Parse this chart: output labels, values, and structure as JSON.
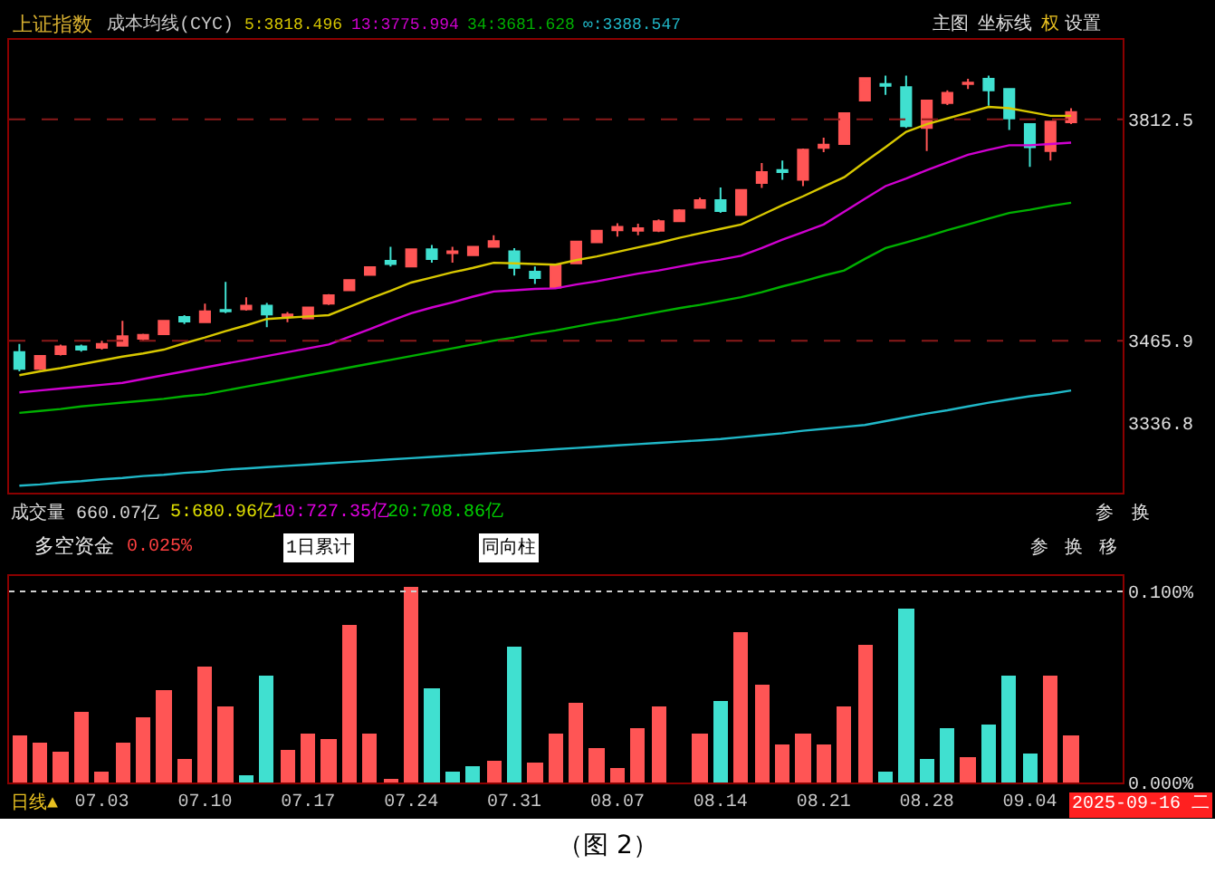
{
  "chart_data": [
    {
      "type": "candlestick",
      "title": "上证指数",
      "subtitle": "成本均线(CYC)",
      "categories": [
        null,
        null,
        null,
        null,
        "07.03",
        null,
        null,
        null,
        null,
        "07.10",
        null,
        null,
        null,
        null,
        "07.17",
        null,
        null,
        null,
        null,
        "07.24",
        null,
        null,
        null,
        null,
        "07.31",
        null,
        null,
        null,
        null,
        "08.07",
        null,
        null,
        null,
        null,
        "08.14",
        null,
        null,
        null,
        null,
        "08.21",
        null,
        null,
        null,
        null,
        "08.28",
        null,
        null,
        null,
        null,
        "09.04",
        null,
        null
      ],
      "ohlc": [
        [
          3448,
          3461,
          3418,
          3422
        ],
        [
          3422,
          3442,
          3420,
          3442
        ],
        [
          3445,
          3460,
          3443,
          3457
        ],
        [
          3457,
          3460,
          3449,
          3452
        ],
        [
          3455,
          3466,
          3452,
          3461
        ],
        [
          3458,
          3497,
          3457,
          3473
        ],
        [
          3469,
          3477,
          3466,
          3475
        ],
        [
          3476,
          3497,
          3475,
          3497
        ],
        [
          3503,
          3506,
          3492,
          3496
        ],
        [
          3495,
          3524,
          3494,
          3512
        ],
        [
          3514,
          3558,
          3509,
          3512
        ],
        [
          3515,
          3534,
          3513,
          3521
        ],
        [
          3521,
          3525,
          3487,
          3507
        ],
        [
          3503,
          3511,
          3495,
          3507
        ],
        [
          3501,
          3519,
          3500,
          3518
        ],
        [
          3524,
          3539,
          3522,
          3537
        ],
        [
          3545,
          3561,
          3545,
          3561
        ],
        [
          3569,
          3582,
          3568,
          3581
        ],
        [
          3591,
          3613,
          3582,
          3586
        ],
        [
          3582,
          3609,
          3582,
          3609
        ],
        [
          3609,
          3616,
          3588,
          3594
        ],
        [
          3603,
          3613,
          3588,
          3606
        ],
        [
          3600,
          3614,
          3600,
          3613
        ],
        [
          3613,
          3631,
          3612,
          3622
        ],
        [
          3606,
          3611,
          3568,
          3580
        ],
        [
          3574,
          3582,
          3555,
          3564
        ],
        [
          3549,
          3585,
          3548,
          3584
        ],
        [
          3587,
          3622,
          3586,
          3621
        ],
        [
          3620,
          3639,
          3619,
          3638
        ],
        [
          3639,
          3650,
          3629,
          3644
        ],
        [
          3638,
          3649,
          3631,
          3642
        ],
        [
          3638,
          3656,
          3636,
          3653
        ],
        [
          3653,
          3672,
          3652,
          3670
        ],
        [
          3674,
          3690,
          3673,
          3686
        ],
        [
          3686,
          3706,
          3666,
          3669
        ],
        [
          3663,
          3703,
          3662,
          3702
        ],
        [
          3713,
          3744,
          3705,
          3730
        ],
        [
          3733,
          3748,
          3718,
          3730
        ],
        [
          3718,
          3767,
          3708,
          3765
        ],
        [
          3768,
          3784,
          3761,
          3773
        ],
        [
          3774,
          3823,
          3773,
          3822
        ],
        [
          3842,
          3878,
          3841,
          3877
        ],
        [
          3868,
          3881,
          3851,
          3865
        ],
        [
          3863,
          3881,
          3799,
          3802
        ],
        [
          3799,
          3843,
          3763,
          3842
        ],
        [
          3838,
          3858,
          3835,
          3854
        ],
        [
          3868,
          3876,
          3860,
          3870
        ],
        [
          3876,
          3881,
          3834,
          3858
        ],
        [
          3860,
          3861,
          3796,
          3814
        ],
        [
          3805,
          3806,
          3738,
          3769
        ],
        [
          3763,
          3810,
          3748,
          3809
        ],
        [
          3808,
          3830,
          3805,
          3824
        ]
      ],
      "series": [
        {
          "type": "line",
          "name": "5:3818.496",
          "color": "#d8c800",
          "values": [
            3412,
            3418,
            3423,
            3429,
            3435,
            3441,
            3446,
            3452,
            3462,
            3471,
            3481,
            3490,
            3500,
            3502,
            3504,
            3506,
            3519,
            3532,
            3544,
            3557,
            3565,
            3573,
            3580,
            3588,
            3587,
            3586,
            3585,
            3592,
            3598,
            3605,
            3612,
            3619,
            3627,
            3634,
            3641,
            3648,
            3663,
            3678,
            3692,
            3707,
            3722,
            3746,
            3769,
            3793,
            3805,
            3814,
            3823,
            3832,
            3830,
            3824,
            3818,
            3818
          ]
        },
        {
          "type": "line",
          "name": "13:3775.994",
          "color": "#d000d0",
          "values": [
            3385,
            3388,
            3391,
            3394,
            3397,
            3400,
            3406,
            3412,
            3418,
            3424,
            3430,
            3436,
            3442,
            3448,
            3454,
            3460,
            3472,
            3484,
            3497,
            3509,
            3518,
            3526,
            3535,
            3543,
            3545,
            3547,
            3548,
            3554,
            3559,
            3565,
            3571,
            3576,
            3582,
            3588,
            3593,
            3599,
            3611,
            3624,
            3636,
            3648,
            3668,
            3688,
            3708,
            3720,
            3733,
            3745,
            3757,
            3765,
            3772,
            3772,
            3774,
            3776
          ]
        },
        {
          "type": "line",
          "name": "34:3681.628",
          "color": "#00b000",
          "values": [
            3353,
            3356,
            3359,
            3363,
            3366,
            3369,
            3372,
            3375,
            3379,
            3382,
            3388,
            3394,
            3400,
            3406,
            3412,
            3418,
            3424,
            3430,
            3436,
            3442,
            3448,
            3454,
            3460,
            3466,
            3471,
            3477,
            3482,
            3488,
            3494,
            3499,
            3505,
            3511,
            3517,
            3522,
            3528,
            3534,
            3542,
            3551,
            3559,
            3568,
            3576,
            3594,
            3611,
            3620,
            3629,
            3639,
            3648,
            3657,
            3666,
            3671,
            3677,
            3682
          ]
        },
        {
          "type": "line",
          "name": "∞:3388.547",
          "color": "#20b8c8",
          "values": [
            3239,
            3241,
            3244,
            3246,
            3249,
            3251,
            3254,
            3256,
            3259,
            3261,
            3264,
            3266,
            3268,
            3270,
            3272,
            3274,
            3276,
            3278,
            3280,
            3282,
            3284,
            3286,
            3288,
            3290,
            3292,
            3294,
            3296,
            3298,
            3300,
            3302,
            3304,
            3306,
            3308,
            3310,
            3312,
            3315,
            3318,
            3321,
            3325,
            3328,
            3331,
            3334,
            3340,
            3346,
            3352,
            3357,
            3363,
            3369,
            3374,
            3379,
            3383,
            3388
          ]
        }
      ],
      "ylim": [
        3228,
        3937
      ],
      "yticks": [
        3812.5,
        3465.9,
        3336.8
      ],
      "tick_labels": "y",
      "grid": false,
      "ref_lines": [
        {
          "axis": "y",
          "value": 3812.5,
          "color": "#8b1a1a",
          "line_style": "dashed"
        },
        {
          "axis": "y",
          "value": 3465.9,
          "color": "#8b1a1a",
          "line_style": "dashed"
        }
      ],
      "annotations": [
        "主图",
        "坐标线",
        "权",
        "设置"
      ]
    },
    {
      "type": "bar",
      "title": "多空资金",
      "subtitle": "0.025%",
      "categories": [
        null,
        null,
        null,
        null,
        "07.03",
        null,
        null,
        null,
        null,
        "07.10",
        null,
        null,
        null,
        null,
        "07.17",
        null,
        null,
        null,
        null,
        "07.24",
        null,
        null,
        null,
        null,
        "07.31",
        null,
        null,
        null,
        null,
        "08.07",
        null,
        null,
        null,
        null,
        "08.14",
        null,
        null,
        null,
        null,
        "08.21",
        null,
        null,
        null,
        null,
        "08.28",
        null,
        null,
        null,
        null,
        "09.04",
        null,
        null
      ],
      "values": [
        0.025,
        0.021,
        0.016,
        0.037,
        0.006,
        0.021,
        0.034,
        0.048,
        0.012,
        0.061,
        0.04,
        0.004,
        0.056,
        0.017,
        0.026,
        0.023,
        0.082,
        0.026,
        0.001,
        0.102,
        0.049,
        0.006,
        0.009,
        0.011,
        0.071,
        0.01,
        0.026,
        0.042,
        0.018,
        0.008,
        0.028,
        0.04,
        null,
        0.026,
        0.043,
        0.079,
        0.051,
        0.02,
        0.026,
        0.02,
        0.04,
        0.072,
        0.006,
        0.091,
        0.012,
        0.028,
        0.013,
        0.03,
        0.056,
        0.015,
        0.056,
        0.025
      ],
      "colors": [
        "#ff5555",
        "#ff5555",
        "#ff5555",
        "#ff5555",
        "#ff5555",
        "#ff5555",
        "#ff5555",
        "#ff5555",
        "#ff5555",
        "#ff5555",
        "#ff5555",
        "#40e0d0",
        "#40e0d0",
        "#ff5555",
        "#ff5555",
        "#ff5555",
        "#ff5555",
        "#ff5555",
        "#ff5555",
        "#ff5555",
        "#40e0d0",
        "#40e0d0",
        "#40e0d0",
        "#ff5555",
        "#40e0d0",
        "#ff5555",
        "#ff5555",
        "#ff5555",
        "#ff5555",
        "#ff5555",
        "#ff5555",
        "#ff5555",
        "#ff5555",
        "#ff5555",
        "#40e0d0",
        "#ff5555",
        "#ff5555",
        "#ff5555",
        "#ff5555",
        "#ff5555",
        "#ff5555",
        "#ff5555",
        "#40e0d0",
        "#40e0d0",
        "#40e0d0",
        "#40e0d0",
        "#ff5555",
        "#40e0d0",
        "#40e0d0",
        "#40e0d0",
        "#ff5555",
        "#ff5555"
      ],
      "ylim": [
        0,
        0.108
      ],
      "yticks": [
        {
          "value": 0.1,
          "label": "0.100%"
        },
        {
          "value": 0,
          "label": "0.000%"
        }
      ],
      "grid": false,
      "ref_lines": [
        {
          "axis": "y",
          "value": 0.1,
          "color": "#d0d0d0",
          "line_style": "dotted"
        }
      ],
      "annotations": [
        "成交量 660.07亿",
        "5:680.96亿",
        "10:727.35亿",
        "20:708.86亿",
        "参",
        "换",
        "1日累计",
        "同向柱",
        "参",
        "换",
        "移",
        "日线▲",
        "2025-09-16 二",
        "（图 2）"
      ]
    }
  ]
}
